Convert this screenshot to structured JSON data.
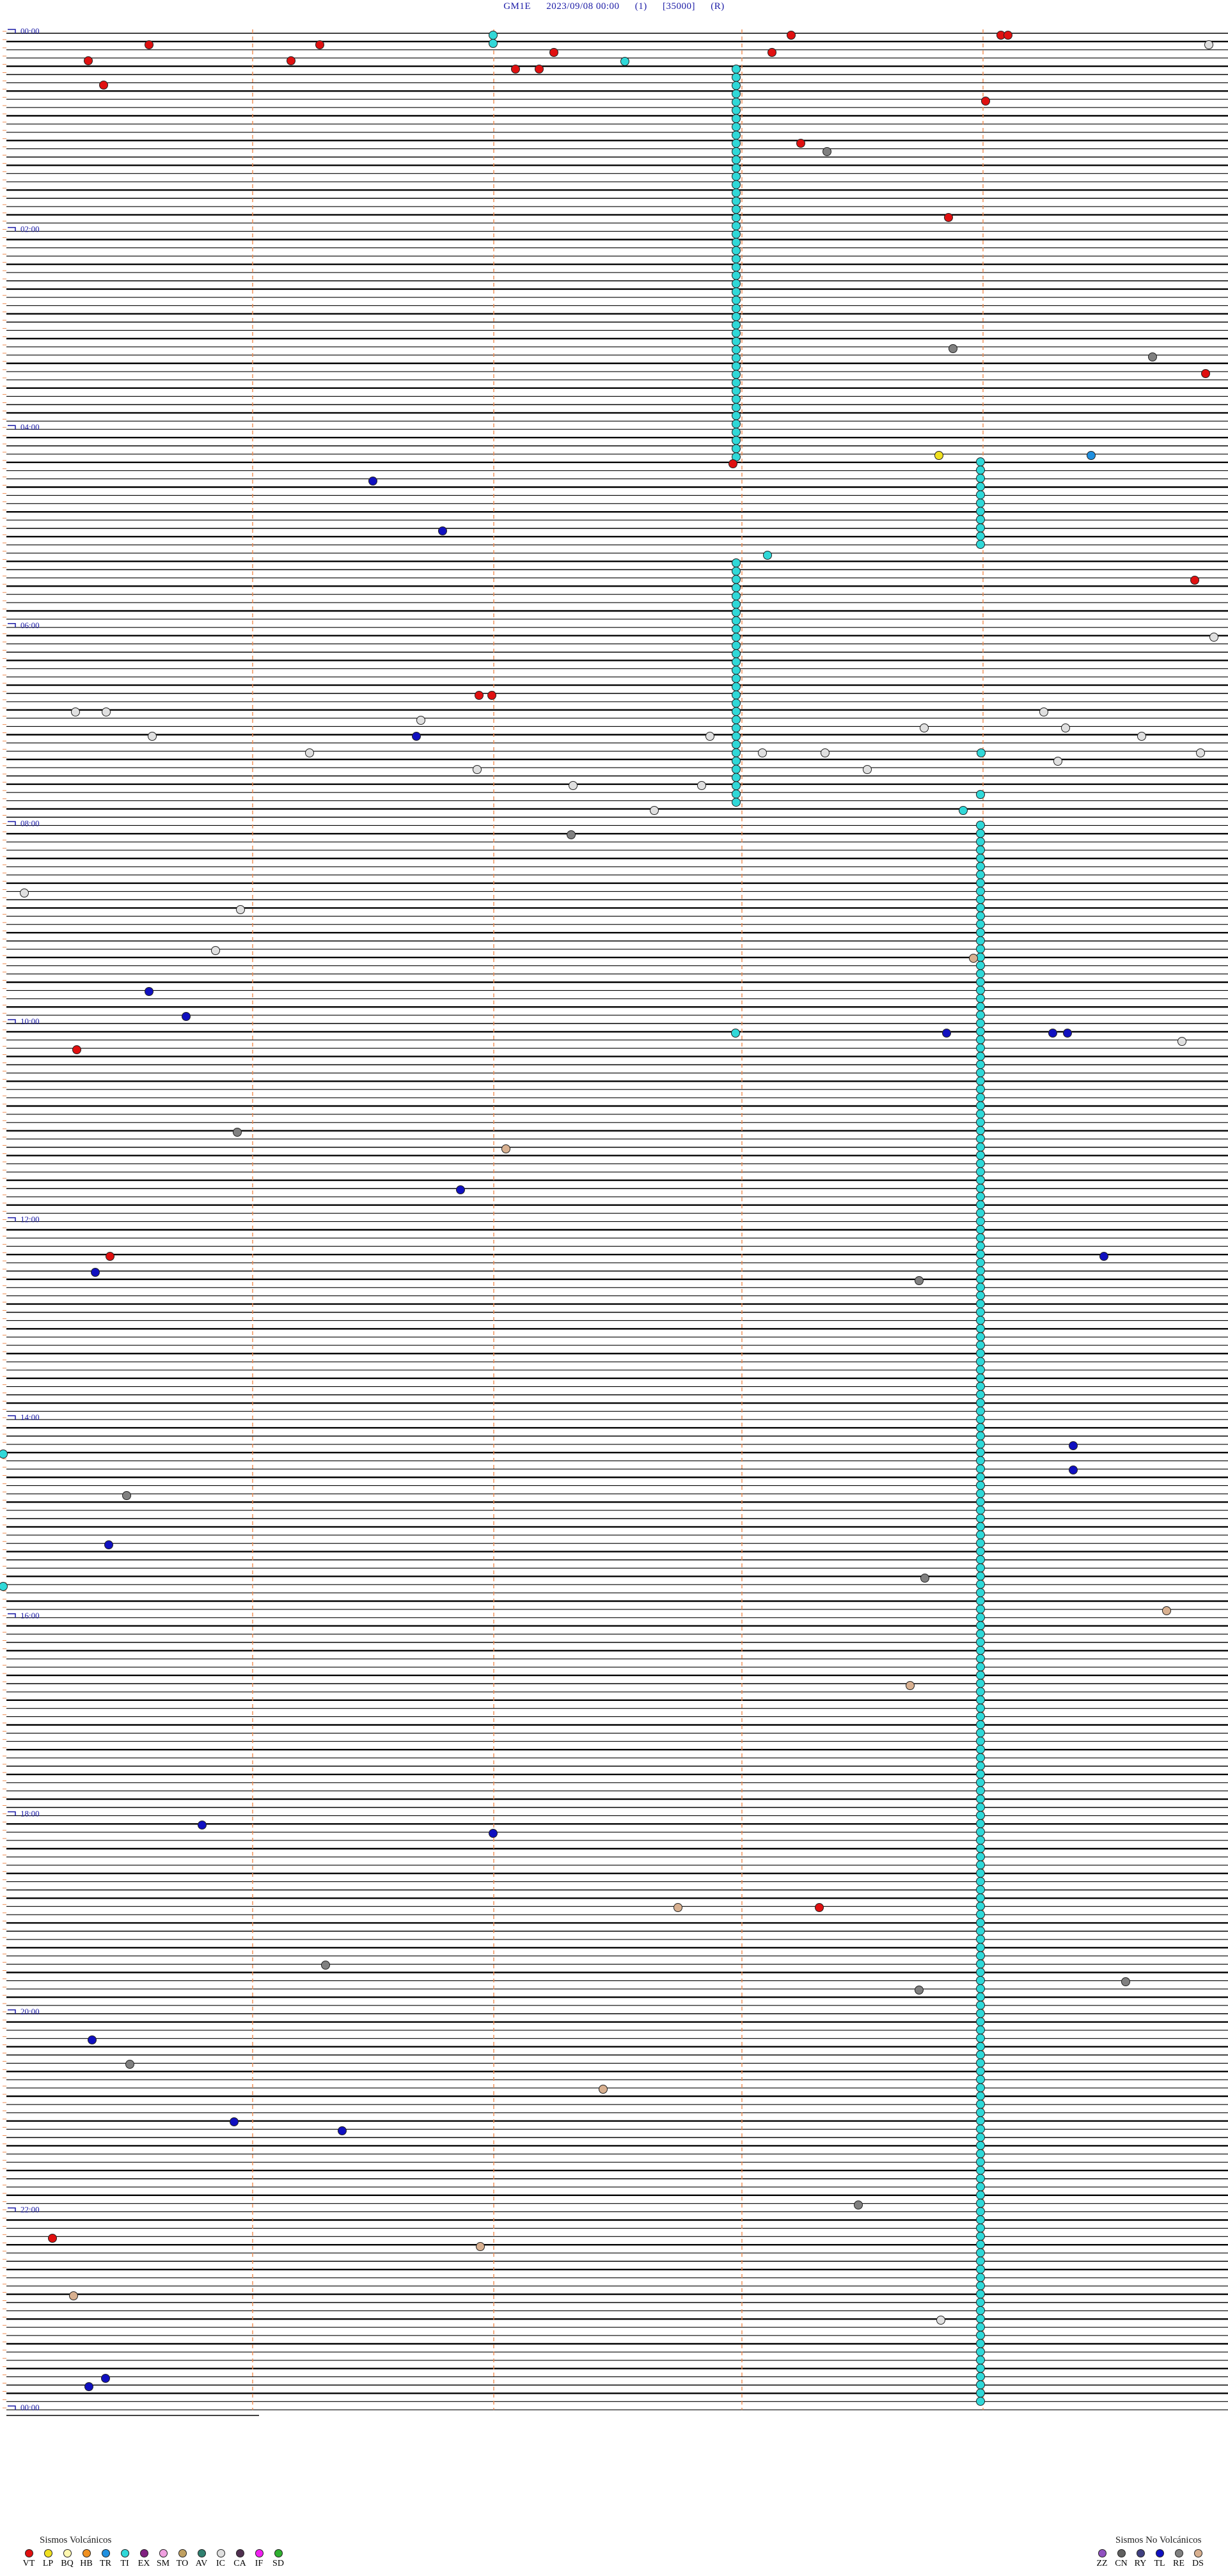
{
  "header": {
    "station": "GM1E",
    "datetime": "2023/09/08 00:00",
    "channel": "(1)",
    "scale": "[35000]",
    "mode": "(R)"
  },
  "time_labels": [
    "00:00",
    "02:00",
    "04:00",
    "06:00",
    "08:00",
    "10:00",
    "12:00",
    "14:00",
    "16:00",
    "18:00",
    "20:00",
    "22:00",
    "00:00"
  ],
  "colors": {
    "trace": "#000000",
    "grid": "#f08c50",
    "label": "#1a1aa6",
    "event_outline": "#222222"
  },
  "event_types": {
    "VT": "#e01010",
    "LP": "#f0e020",
    "BQ": "#fff8b0",
    "HB": "#f09020",
    "TR": "#2090e0",
    "TI": "#30d8d8",
    "EX": "#802080",
    "SM": "#f0a0e0",
    "TO": "#c0a060",
    "AV": "#308070",
    "IC": "#e0e0e0",
    "CA": "#503050",
    "IF": "#f020f0",
    "SD": "#30b030",
    "ZZ": "#9050c0",
    "CN": "#606060",
    "RY": "#404080",
    "TL": "#1010c0",
    "RE": "#808080",
    "DS": "#d8b090"
  },
  "legend_volcanic": {
    "title": "Sismos Volcánicos",
    "items": [
      "VT",
      "LP",
      "BQ",
      "HB",
      "TR",
      "TI",
      "EX",
      "SM",
      "TO",
      "AV",
      "IC",
      "CA",
      "IF",
      "SD"
    ]
  },
  "legend_nonvolcanic": {
    "title": "Sismos No Volcánicos",
    "items": [
      "ZZ",
      "CN",
      "RY",
      "TL",
      "RE",
      "DS"
    ]
  }
}
